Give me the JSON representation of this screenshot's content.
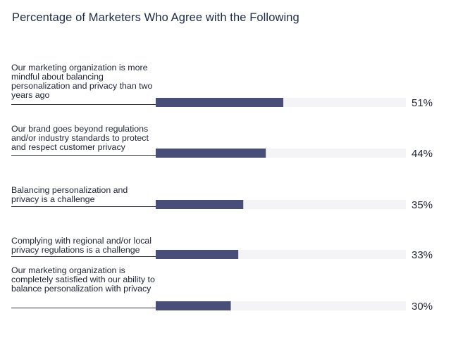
{
  "chart_data": {
    "type": "bar",
    "orientation": "horizontal",
    "title": "Percentage of Marketers Who Agree with the Following",
    "categories": [
      "Our marketing organization is more mindful about balancing personalization and privacy than two years ago",
      "Our brand goes beyond regulations and/or industry standards to protect and respect customer privacy",
      "Balancing personalization and privacy is a challenge",
      "Complying with regional and/or local privacy regulations is a challenge",
      "Our marketing organization is completely satisfied with our ability to balance personalization with privacy"
    ],
    "values": [
      51,
      44,
      35,
      33,
      30
    ],
    "value_labels": [
      "51%",
      "44%",
      "35%",
      "33%",
      "30%"
    ],
    "xlim": [
      0,
      100
    ],
    "grid": false,
    "legend": "none",
    "colors": {
      "bar": "#494e79",
      "track": "#f4f3f5",
      "label_rule": "#2b2f40"
    }
  }
}
